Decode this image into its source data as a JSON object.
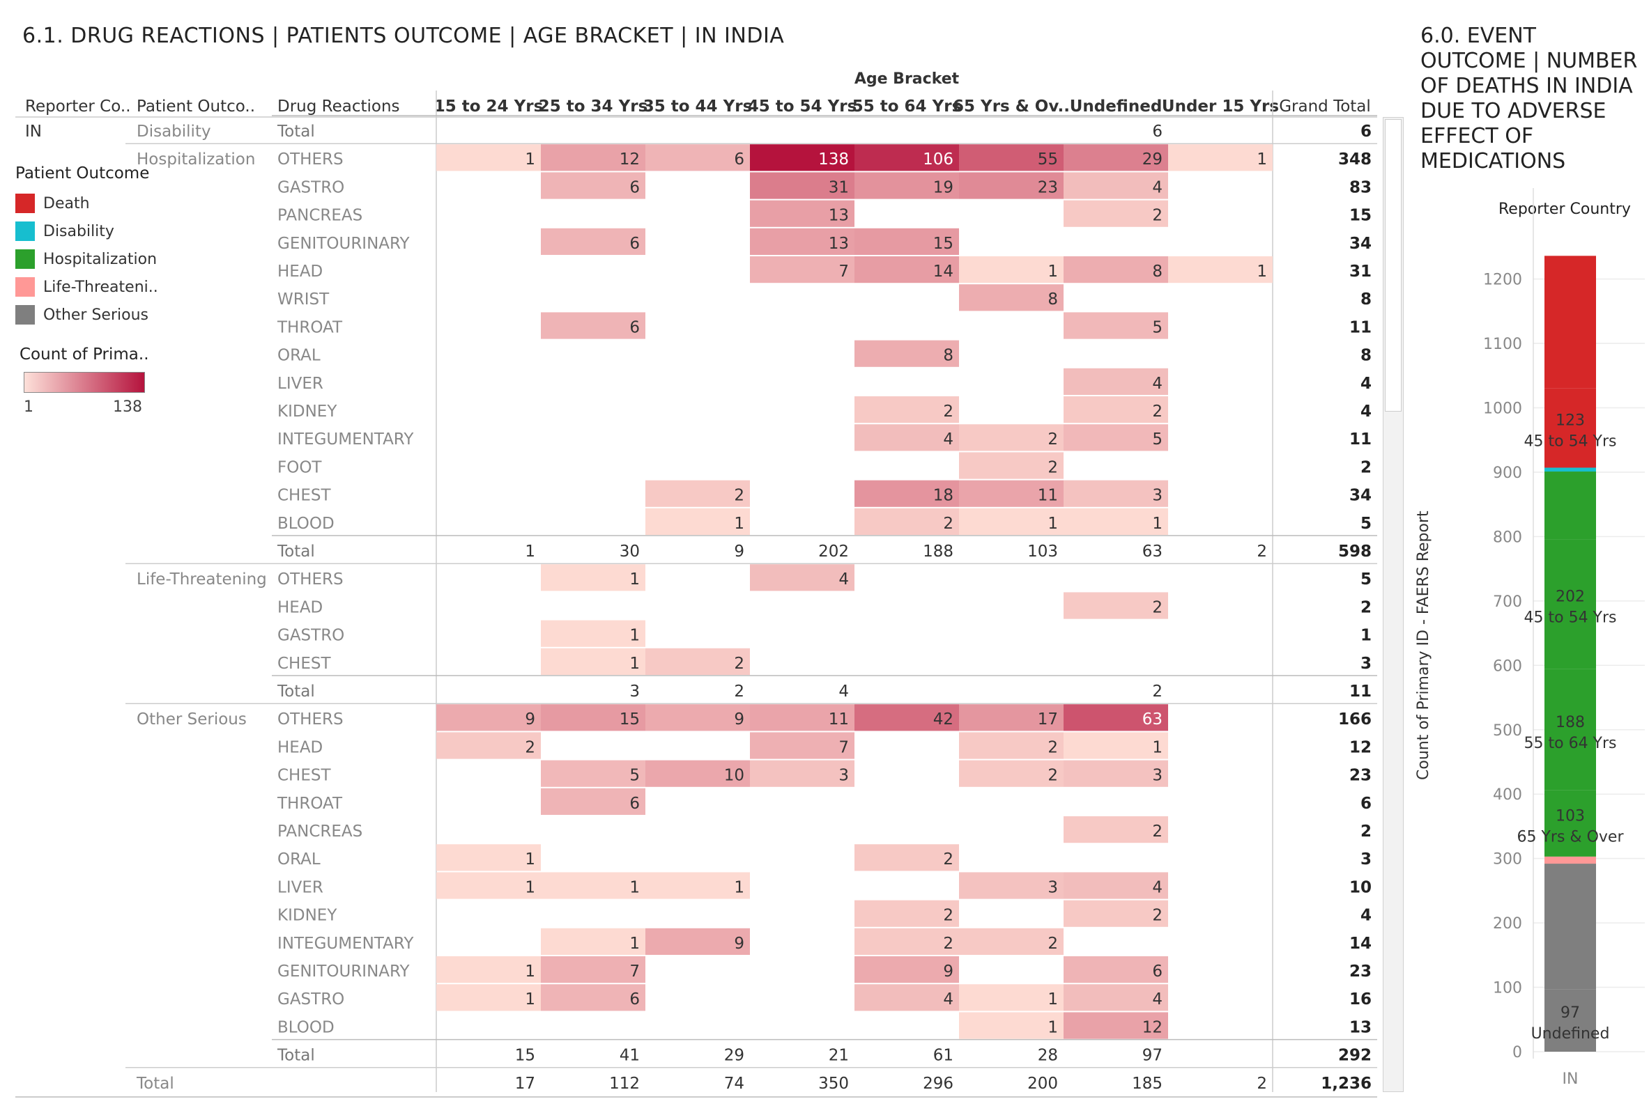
{
  "left_title": "6.1.  DRUG REACTIONS   |   PATIENTS OUTCOME   |   AGE BRACKET   |   IN INDIA",
  "right_title": "6.0.  EVENT OUTCOME   |   NUMBER OF DEATHS IN INDIA DUE TO ADVERSE EFFECT OF MEDICATIONS",
  "colors": {
    "death": "#d62728",
    "disability": "#17becf",
    "hospitalization": "#2ca02c",
    "life_threatening": "#ff9896",
    "other_serious": "#7f7f7f"
  },
  "legend": {
    "title": "Patient Outcome",
    "items": [
      {
        "label": "Death",
        "color": "#d62728"
      },
      {
        "label": "Disability",
        "color": "#17becf"
      },
      {
        "label": "Hospitalization",
        "color": "#2ca02c"
      },
      {
        "label": "Life-Threateni..",
        "color": "#ff9896"
      },
      {
        "label": "Other Serious",
        "color": "#7f7f7f"
      }
    ]
  },
  "color_scale": {
    "title": "Count of Prima..",
    "min_label": "1",
    "max_label": "138",
    "min_color": "#fde0d9",
    "max_color": "#b5133d"
  },
  "chart_data": [
    {
      "type": "table",
      "column_group_header": "Age Bracket",
      "row_headers": [
        "Reporter Co..",
        "Patient Outco..",
        "Drug Reactions"
      ],
      "columns": [
        "15 to 24 Yrs",
        "25 to 34 Yrs",
        "35 to 44 Yrs",
        "45 to 54 Yrs",
        "55 to 64 Yrs",
        "65 Yrs & Ov..",
        "Undefined",
        "Under 15 Yrs"
      ],
      "grand_total_label": "Grand Total",
      "total_label": "Total",
      "reporter_country": "IN",
      "groups": [
        {
          "outcome": "Disability",
          "rows": [
            {
              "reaction": "Total",
              "values": [
                null,
                null,
                null,
                null,
                null,
                null,
                6,
                null
              ],
              "total": "6",
              "is_total": true
            }
          ]
        },
        {
          "outcome": "Hospitalization",
          "rows": [
            {
              "reaction": "OTHERS",
              "values": [
                1,
                12,
                6,
                138,
                106,
                55,
                29,
                1
              ],
              "total": "348"
            },
            {
              "reaction": "GASTRO",
              "values": [
                null,
                6,
                null,
                31,
                19,
                23,
                4,
                null
              ],
              "total": "83"
            },
            {
              "reaction": "PANCREAS",
              "values": [
                null,
                null,
                null,
                13,
                null,
                null,
                2,
                null
              ],
              "total": "15"
            },
            {
              "reaction": "GENITOURINARY",
              "values": [
                null,
                6,
                null,
                13,
                15,
                null,
                null,
                null
              ],
              "total": "34"
            },
            {
              "reaction": "HEAD",
              "values": [
                null,
                null,
                null,
                7,
                14,
                1,
                8,
                1
              ],
              "total": "31"
            },
            {
              "reaction": "WRIST",
              "values": [
                null,
                null,
                null,
                null,
                null,
                8,
                null,
                null
              ],
              "total": "8"
            },
            {
              "reaction": "THROAT",
              "values": [
                null,
                6,
                null,
                null,
                null,
                null,
                5,
                null
              ],
              "total": "11"
            },
            {
              "reaction": "ORAL",
              "values": [
                null,
                null,
                null,
                null,
                8,
                null,
                null,
                null
              ],
              "total": "8"
            },
            {
              "reaction": "LIVER",
              "values": [
                null,
                null,
                null,
                null,
                null,
                null,
                4,
                null
              ],
              "total": "4"
            },
            {
              "reaction": "KIDNEY",
              "values": [
                null,
                null,
                null,
                null,
                2,
                null,
                2,
                null
              ],
              "total": "4"
            },
            {
              "reaction": "INTEGUMENTARY",
              "values": [
                null,
                null,
                null,
                null,
                4,
                2,
                5,
                null
              ],
              "total": "11"
            },
            {
              "reaction": "FOOT",
              "values": [
                null,
                null,
                null,
                null,
                null,
                2,
                null,
                null
              ],
              "total": "2"
            },
            {
              "reaction": "CHEST",
              "values": [
                null,
                null,
                2,
                null,
                18,
                11,
                3,
                null
              ],
              "total": "34"
            },
            {
              "reaction": "BLOOD",
              "values": [
                null,
                null,
                1,
                null,
                2,
                1,
                1,
                null
              ],
              "total": "5"
            },
            {
              "reaction": "Total",
              "values": [
                1,
                30,
                9,
                202,
                188,
                103,
                63,
                2
              ],
              "total": "598",
              "is_total": true
            }
          ]
        },
        {
          "outcome": "Life-Threatening",
          "rows": [
            {
              "reaction": "OTHERS",
              "values": [
                null,
                1,
                null,
                4,
                null,
                null,
                null,
                null
              ],
              "total": "5"
            },
            {
              "reaction": "HEAD",
              "values": [
                null,
                null,
                null,
                null,
                null,
                null,
                2,
                null
              ],
              "total": "2"
            },
            {
              "reaction": "GASTRO",
              "values": [
                null,
                1,
                null,
                null,
                null,
                null,
                null,
                null
              ],
              "total": "1"
            },
            {
              "reaction": "CHEST",
              "values": [
                null,
                1,
                2,
                null,
                null,
                null,
                null,
                null
              ],
              "total": "3"
            },
            {
              "reaction": "Total",
              "values": [
                null,
                3,
                2,
                4,
                null,
                null,
                2,
                null
              ],
              "total": "11",
              "is_total": true
            }
          ]
        },
        {
          "outcome": "Other Serious",
          "rows": [
            {
              "reaction": "OTHERS",
              "values": [
                9,
                15,
                9,
                11,
                42,
                17,
                63,
                null
              ],
              "total": "166"
            },
            {
              "reaction": "HEAD",
              "values": [
                2,
                null,
                null,
                7,
                null,
                2,
                1,
                null
              ],
              "total": "12"
            },
            {
              "reaction": "CHEST",
              "values": [
                null,
                5,
                10,
                3,
                null,
                2,
                3,
                null
              ],
              "total": "23"
            },
            {
              "reaction": "THROAT",
              "values": [
                null,
                6,
                null,
                null,
                null,
                null,
                null,
                null
              ],
              "total": "6"
            },
            {
              "reaction": "PANCREAS",
              "values": [
                null,
                null,
                null,
                null,
                null,
                null,
                2,
                null
              ],
              "total": "2"
            },
            {
              "reaction": "ORAL",
              "values": [
                1,
                null,
                null,
                null,
                2,
                null,
                null,
                null
              ],
              "total": "3"
            },
            {
              "reaction": "LIVER",
              "values": [
                1,
                1,
                1,
                null,
                null,
                3,
                4,
                null
              ],
              "total": "10"
            },
            {
              "reaction": "KIDNEY",
              "values": [
                null,
                null,
                null,
                null,
                2,
                null,
                2,
                null
              ],
              "total": "4"
            },
            {
              "reaction": "INTEGUMENTARY",
              "values": [
                null,
                1,
                9,
                null,
                2,
                2,
                null,
                null
              ],
              "total": "14"
            },
            {
              "reaction": "GENITOURINARY",
              "values": [
                1,
                7,
                null,
                null,
                9,
                null,
                6,
                null
              ],
              "total": "23"
            },
            {
              "reaction": "GASTRO",
              "values": [
                1,
                6,
                null,
                null,
                4,
                1,
                4,
                null
              ],
              "total": "16"
            },
            {
              "reaction": "BLOOD",
              "values": [
                null,
                null,
                null,
                null,
                null,
                1,
                12,
                null
              ],
              "total": "13"
            },
            {
              "reaction": "Total",
              "values": [
                15,
                41,
                29,
                21,
                61,
                28,
                97,
                null
              ],
              "total": "292",
              "is_total": true
            }
          ]
        }
      ],
      "grand_total_row": {
        "label": "Total",
        "values": [
          17,
          112,
          74,
          350,
          296,
          200,
          185,
          2
        ],
        "total": "1,236"
      }
    },
    {
      "type": "bar",
      "stacked": true,
      "title": "",
      "column_header": "Reporter Country",
      "categories": [
        "IN"
      ],
      "ylabel": "Count of Primary ID - FAERS Report",
      "ylim": [
        0,
        1236
      ],
      "yticks": [
        0,
        100,
        200,
        300,
        400,
        500,
        600,
        700,
        800,
        900,
        1000,
        1100,
        1200
      ],
      "segments": [
        {
          "outcome": "Other Serious",
          "age": "Undefined",
          "value": 97,
          "color": "#7f7f7f",
          "label_value": "97",
          "label_age": "Undefined"
        },
        {
          "outcome": "Other Serious",
          "age": "other ages",
          "value": 195,
          "color": "#7f7f7f"
        },
        {
          "outcome": "Life-Threatening",
          "age": "all",
          "value": 11,
          "color": "#ff9896"
        },
        {
          "outcome": "Hospitalization",
          "age": "65 Yrs & Over",
          "value": 103,
          "color": "#2ca02c",
          "label_value": "103",
          "label_age": "65 Yrs & Over"
        },
        {
          "outcome": "Hospitalization",
          "age": "55 to 64 Yrs",
          "value": 188,
          "color": "#2ca02c",
          "label_value": "188",
          "label_age": "55 to 64 Yrs"
        },
        {
          "outcome": "Hospitalization",
          "age": "45 to 54 Yrs",
          "value": 202,
          "color": "#2ca02c",
          "label_value": "202",
          "label_age": "45 to 54 Yrs"
        },
        {
          "outcome": "Hospitalization",
          "age": "other ages",
          "value": 105,
          "color": "#2ca02c"
        },
        {
          "outcome": "Disability",
          "age": "Undefined",
          "value": 6,
          "color": "#17becf"
        },
        {
          "outcome": "Death",
          "age": "45 to 54 Yrs",
          "value": 123,
          "color": "#d62728",
          "label_value": "123",
          "label_age": "45 to 54 Yrs"
        },
        {
          "outcome": "Death",
          "age": "other ages",
          "value": 206,
          "color": "#d62728"
        }
      ]
    }
  ]
}
